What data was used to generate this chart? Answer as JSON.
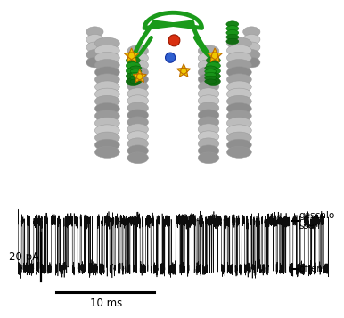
{
  "trace": {
    "closed_level": 0.0,
    "open_level": -1.0,
    "closed_label": "geschlo\nssen",
    "open_label": "offen",
    "scale_bar_pa": "20 pA",
    "scale_bar_ms": "10 ms"
  },
  "protein": {
    "helix_color": "#c8c8c8",
    "helix_edge": "#999999",
    "loop_color": "#1a9a1a",
    "loop_edge": "#006600",
    "ion_red": "#d93010",
    "ion_blue": "#3060d0",
    "star_color": "#f0c800",
    "star_edge": "#c07000"
  }
}
